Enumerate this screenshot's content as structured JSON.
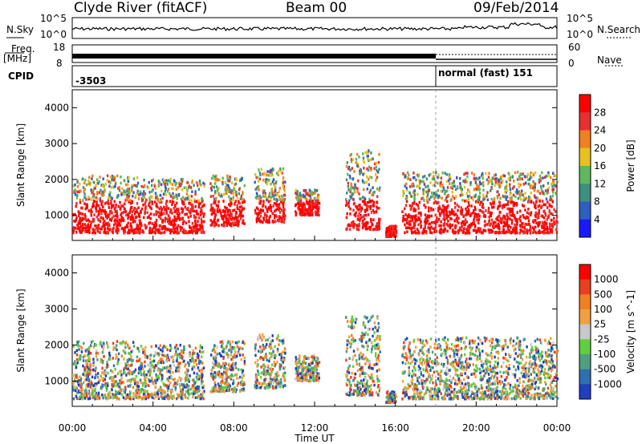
{
  "header": {
    "title": "Clyde River (fitACF)",
    "beam": "Beam 00",
    "date": "09/Feb/2014"
  },
  "left_labels": {
    "nsky": "N.Sky",
    "freq_a": "Freq.",
    "freq_b": "[MHz]",
    "cpid": "CPID"
  },
  "right_labels": {
    "nsearch": "N.Search",
    "nave": "Nave"
  },
  "noise_axis": {
    "top": "10^5",
    "bottom": "10^0"
  },
  "freq_axis": {
    "top": "18",
    "bottom": "8"
  },
  "nave_axis": {
    "top": "60",
    "bottom": "0"
  },
  "cpid_labels": {
    "first": "-3503",
    "second": "normal (fast) 151"
  },
  "chart_data": [
    {
      "type": "heatmap",
      "panel": "power",
      "ylabel": "Slant Range [km]",
      "xlabel": "",
      "yticks": [
        "1000",
        "2000",
        "3000",
        "4000"
      ],
      "ylim": [
        300,
        4500
      ],
      "xlim_hours": [
        0,
        24
      ],
      "colorbar": {
        "label": "Power [dB]",
        "ticks": [
          "4",
          "8",
          "12",
          "16",
          "20",
          "24",
          "28"
        ],
        "colors": [
          "#1a1aff",
          "#2f5fbf",
          "#3f8f7f",
          "#5fb85f",
          "#e8c020",
          "#f08020",
          "#e83030",
          "#ff0000"
        ]
      }
    },
    {
      "type": "heatmap",
      "panel": "velocity",
      "ylabel": "Slant Range [km]",
      "xlabel": "Time UT",
      "yticks": [
        "1000",
        "2000",
        "3000",
        "4000"
      ],
      "ylim": [
        300,
        4500
      ],
      "xlim_hours": [
        0,
        24
      ],
      "xticks": [
        "00:00",
        "04:00",
        "08:00",
        "12:00",
        "16:00",
        "20:00",
        "00:00"
      ],
      "colorbar": {
        "label": "Velocity [m s^-1]",
        "ticks": [
          "1000",
          "500",
          "100",
          "25",
          "-25",
          "-100",
          "-500",
          "-1000"
        ],
        "colors": [
          "#1f3fbf",
          "#2f70b0",
          "#4f9f7f",
          "#5fcf3f",
          "#c8c8c8",
          "#f0a040",
          "#f08020",
          "#e84020",
          "#ff0000"
        ]
      }
    }
  ],
  "colors": {
    "power_dominant": "#ff2200",
    "velocity_dominant": "#3a8f6f",
    "background": "#ffffff"
  }
}
